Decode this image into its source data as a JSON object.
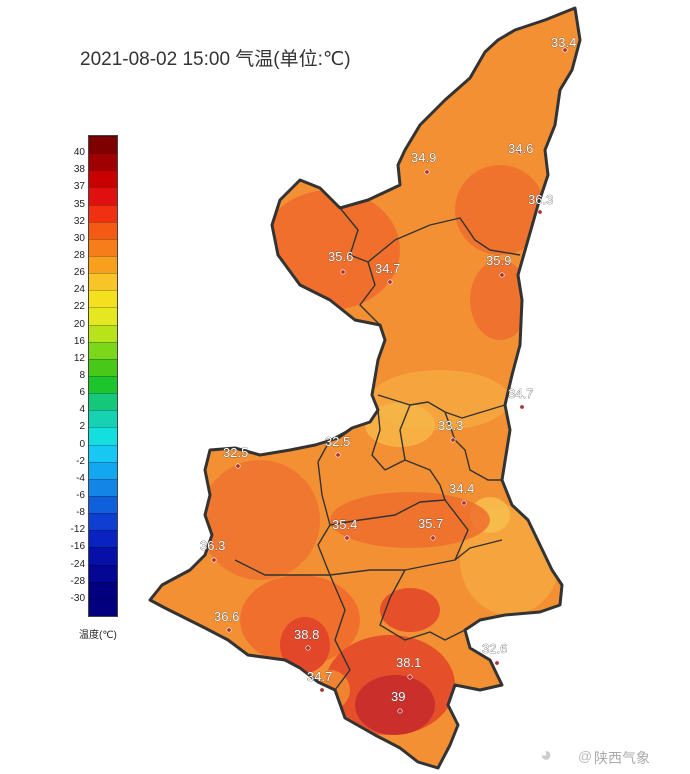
{
  "title": "2021-08-02 15:00 气温(单位:℃)",
  "legend": {
    "title": "温度(℃)",
    "ticks": [
      "40",
      "38",
      "37",
      "35",
      "32",
      "30",
      "28",
      "26",
      "24",
      "22",
      "20",
      "16",
      "12",
      "8",
      "6",
      "4",
      "2",
      "0",
      "-2",
      "-4",
      "-6",
      "-8",
      "-12",
      "-16",
      "-24",
      "-28",
      "-30"
    ],
    "colors": [
      "#7f0000",
      "#a00000",
      "#c80000",
      "#e01010",
      "#f03010",
      "#f55a15",
      "#f67d1a",
      "#f8a01e",
      "#f8c428",
      "#f5e020",
      "#e5e820",
      "#b8e31b",
      "#7cd619",
      "#48c818",
      "#1ec42b",
      "#14c779",
      "#16d2b2",
      "#15dede",
      "#18c8f4",
      "#12a8f0",
      "#1285e6",
      "#1060dc",
      "#0e3fd0",
      "#0a22c0",
      "#0610a8",
      "#040694",
      "#02007e"
    ]
  },
  "stations": [
    {
      "value": "33.4"
    },
    {
      "value": "34.9"
    },
    {
      "value": "34.6"
    },
    {
      "value": "36.3"
    },
    {
      "value": "35.6"
    },
    {
      "value": "34.7"
    },
    {
      "value": "35.9"
    },
    {
      "value": "34.7"
    },
    {
      "value": "32.5"
    },
    {
      "value": "33.3"
    },
    {
      "value": "32.5"
    },
    {
      "value": "34.4"
    },
    {
      "value": "35.4"
    },
    {
      "value": "35.7"
    },
    {
      "value": "36.3"
    },
    {
      "value": "36.6"
    },
    {
      "value": "38.8"
    },
    {
      "value": "32.6"
    },
    {
      "value": "38.1"
    },
    {
      "value": "34.7"
    },
    {
      "value": "39"
    }
  ],
  "watermark": "陕西气象",
  "colors": {
    "base": "#f39034",
    "hot": "#ee6a2c",
    "hotter": "#e2452a",
    "hottest": "#c92d2c",
    "mild": "#f6a941",
    "border": "#333333"
  }
}
